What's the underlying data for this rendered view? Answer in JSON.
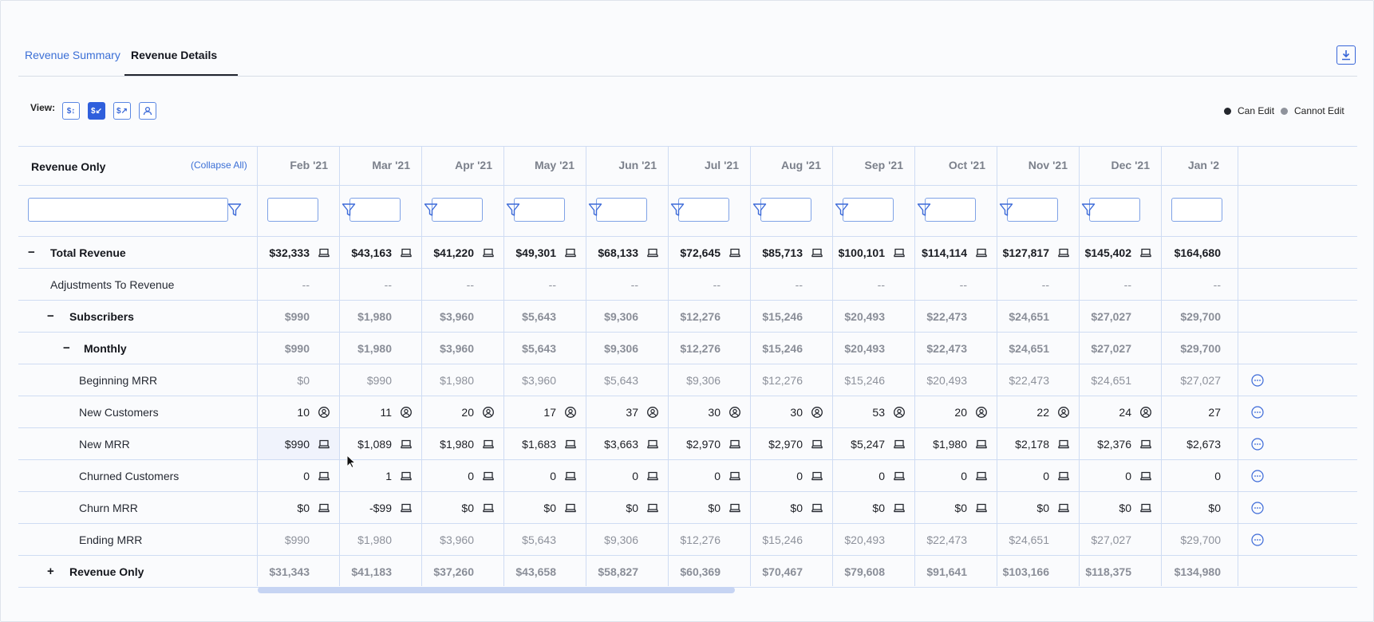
{
  "tabs": {
    "summary": "Revenue Summary",
    "details": "Revenue Details"
  },
  "view_label": "View:",
  "view_buttons": [
    {
      "glyph": "$↕",
      "active": false
    },
    {
      "glyph": "$↙",
      "active": true
    },
    {
      "glyph": "$↗",
      "active": false
    },
    {
      "glyph": "👤",
      "active": false
    }
  ],
  "legend": {
    "can_edit": "Can Edit",
    "cannot_edit": "Cannot Edit",
    "can_color": "#23262d",
    "cannot_color": "#8f939c"
  },
  "table": {
    "corner_title": "Revenue Only",
    "collapse_all": "(Collapse All)",
    "months": [
      "Feb '21",
      "Mar '21",
      "Apr '21",
      "May '21",
      "Jun '21",
      "Jul '21",
      "Aug '21",
      "Sep '21",
      "Oct '21",
      "Nov '21",
      "Dec '21",
      "Jan '2"
    ],
    "rows": [
      {
        "label": "Total Revenue",
        "sign": "−",
        "indent": 0,
        "style": "bold",
        "icon": "calculator-icon",
        "values": [
          "$32,333",
          "$43,163",
          "$41,220",
          "$49,301",
          "$68,133",
          "$72,645",
          "$85,713",
          "$100,101",
          "$114,114",
          "$127,817",
          "$145,402",
          "$164,680"
        ]
      },
      {
        "label": "Adjustments To Revenue",
        "sign": "",
        "indent": 1,
        "style": "dash",
        "icon": "",
        "values": [
          "--",
          "--",
          "--",
          "--",
          "--",
          "--",
          "--",
          "--",
          "--",
          "--",
          "--",
          "--"
        ]
      },
      {
        "label": "Subscribers",
        "sign": "−",
        "indent": 1,
        "style": "gbold",
        "icon": "",
        "values": [
          "$990",
          "$1,980",
          "$3,960",
          "$5,643",
          "$9,306",
          "$12,276",
          "$15,246",
          "$20,493",
          "$22,473",
          "$24,651",
          "$27,027",
          "$29,700"
        ]
      },
      {
        "label": "Monthly",
        "sign": "−",
        "indent": 2,
        "style": "gbold",
        "icon": "",
        "values": [
          "$990",
          "$1,980",
          "$3,960",
          "$5,643",
          "$9,306",
          "$12,276",
          "$15,246",
          "$20,493",
          "$22,473",
          "$24,651",
          "$27,027",
          "$29,700"
        ]
      },
      {
        "label": "Beginning MRR",
        "sign": "",
        "indent": 3,
        "style": "grey",
        "icon": "",
        "more": true,
        "values": [
          "$0",
          "$990",
          "$1,980",
          "$3,960",
          "$5,643",
          "$9,306",
          "$12,276",
          "$15,246",
          "$20,493",
          "$22,473",
          "$24,651",
          "$27,027"
        ]
      },
      {
        "label": "New Customers",
        "sign": "",
        "indent": 3,
        "style": "norm",
        "icon": "user-icon",
        "more": true,
        "values": [
          "10",
          "11",
          "20",
          "17",
          "37",
          "30",
          "30",
          "53",
          "20",
          "22",
          "24",
          "27"
        ]
      },
      {
        "label": "New MRR",
        "sign": "",
        "indent": 3,
        "style": "norm",
        "icon": "calculator-icon",
        "more": true,
        "values": [
          "$990",
          "$1,089",
          "$1,980",
          "$1,683",
          "$3,663",
          "$2,970",
          "$2,970",
          "$5,247",
          "$1,980",
          "$2,178",
          "$2,376",
          "$2,673"
        ]
      },
      {
        "label": "Churned Customers",
        "sign": "",
        "indent": 3,
        "style": "norm",
        "icon": "calculator-icon",
        "more": true,
        "values": [
          "0",
          "1",
          "0",
          "0",
          "0",
          "0",
          "0",
          "0",
          "0",
          "0",
          "0",
          "0"
        ]
      },
      {
        "label": "Churn MRR",
        "sign": "",
        "indent": 3,
        "style": "norm",
        "icon": "calculator-icon",
        "more": true,
        "values": [
          "$0",
          "-$99",
          "$0",
          "$0",
          "$0",
          "$0",
          "$0",
          "$0",
          "$0",
          "$0",
          "$0",
          "$0"
        ]
      },
      {
        "label": "Ending MRR",
        "sign": "",
        "indent": 3,
        "style": "grey",
        "icon": "",
        "more": true,
        "values": [
          "$990",
          "$1,980",
          "$3,960",
          "$5,643",
          "$9,306",
          "$12,276",
          "$15,246",
          "$20,493",
          "$22,473",
          "$24,651",
          "$27,027",
          "$29,700"
        ]
      },
      {
        "label": "Revenue Only",
        "sign": "+",
        "indent": 1,
        "style": "gbold",
        "icon": "",
        "values": [
          "$31,343",
          "$41,183",
          "$37,260",
          "$43,658",
          "$58,827",
          "$60,369",
          "$70,467",
          "$79,608",
          "$91,641",
          "$103,166",
          "$118,375",
          "$134,980"
        ]
      }
    ]
  }
}
